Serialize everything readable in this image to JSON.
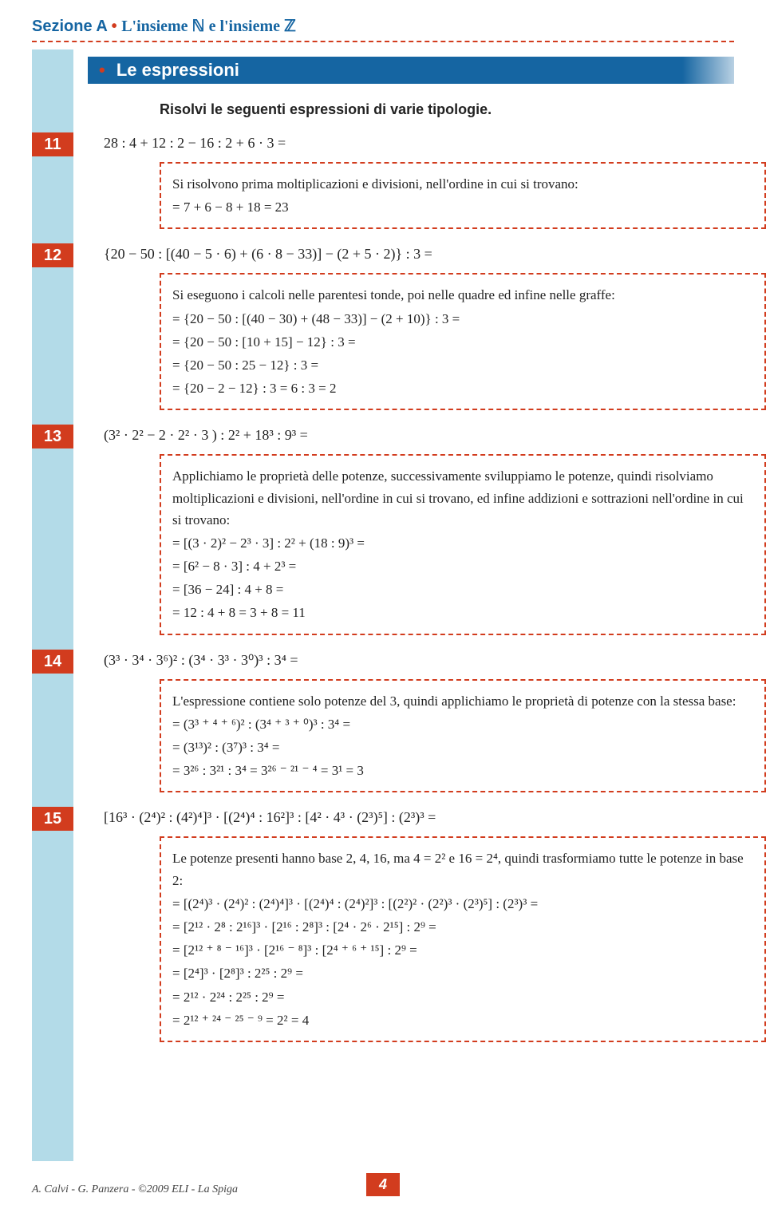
{
  "colors": {
    "brand_blue": "#1565a2",
    "brand_orange": "#d23c1e",
    "light_blue": "#b3dbe8",
    "text": "#222222",
    "bg": "#ffffff"
  },
  "typography": {
    "header_fontsize": 20,
    "band_fontsize": 22,
    "intro_fontsize": 18,
    "body_fontsize": 18,
    "solution_fontsize": 17
  },
  "header": {
    "section_label": "Sezione A",
    "section_title": "L'insieme ℕ e l'insieme ℤ"
  },
  "band": {
    "title": "Le espressioni"
  },
  "intro": "Risolvi le seguenti espressioni di varie tipologie.",
  "exercises": [
    {
      "num": "11",
      "expr_html": "28 : 4 + 12 : 2 − 16 : 2 + 6 · 3 =",
      "solution": {
        "para": "Si risolvono prima moltiplicazioni e divisioni, nell'ordine in cui si trovano:",
        "lines": [
          "= 7 + 6 − 8 + 18 = 23"
        ]
      }
    },
    {
      "num": "12",
      "expr_html": "{20 − 50 : [(40 − 5 · 6) + (6 · 8 − 33)] − (2 + 5 · 2)} : 3 =",
      "solution": {
        "para": "Si eseguono i calcoli nelle parentesi tonde, poi nelle quadre ed infine nelle graffe:",
        "lines": [
          "= {20 − 50 : [(40 − 30) + (48 − 33)] − (2 + 10)} : 3 =",
          "= {20 − 50 : [10 + 15] − 12} : 3 =",
          "= {20 − 50 : 25 − 12} : 3 =",
          "= {20 − 2 − 12} : 3 = 6 : 3 = 2"
        ]
      }
    },
    {
      "num": "13",
      "expr_html": "(3² · 2² − 2 · 2² · 3 ) : 2² + 18³ : 9³ =",
      "solution": {
        "para": "Applichiamo le proprietà delle potenze, successivamente sviluppiamo le potenze, quindi risolviamo moltiplicazioni e divisioni, nell'ordine in cui si trovano, ed infine addizioni e sottrazioni nell'ordine in cui si trovano:",
        "lines": [
          "= [(3 · 2)² − 2³ · 3] : 2²  + (18 : 9)³ =",
          "= [6² − 8 · 3] : 4  + 2³ =",
          "= [36 − 24] : 4 + 8 =",
          "= 12 : 4 + 8 = 3 + 8 = 11"
        ]
      }
    },
    {
      "num": "14",
      "expr_html": "(3³ · 3⁴ · 3⁶)² : (3⁴ · 3³ · 3⁰)³ : 3⁴ =",
      "solution": {
        "para": "L'espressione contiene solo potenze del 3, quindi applichiamo le proprietà di potenze con la stessa base:",
        "lines": [
          "= (3³ ⁺ ⁴ ⁺ ⁶)² : (3⁴ ⁺ ³ ⁺ ⁰)³ : 3⁴ =",
          "= (3¹³)² : (3⁷)³ : 3⁴ =",
          "= 3²⁶ : 3²¹ : 3⁴ = 3²⁶ ⁻ ²¹ ⁻ ⁴ = 3¹ = 3"
        ]
      }
    },
    {
      "num": "15",
      "expr_html": "[16³ · (2⁴)² : (4²)⁴]³ · [(2⁴)⁴ : 16²]³ : [4² · 4³ · (2³)⁵] : (2³)³ =",
      "solution": {
        "para": "Le potenze presenti hanno base 2, 4, 16, ma 4 = 2² e 16 = 2⁴, quindi trasformiamo tutte le potenze in base 2:",
        "lines": [
          "= [(2⁴)³ · (2⁴)² : (2⁴)⁴]³ · [(2⁴)⁴ : (2⁴)²]³ : [(2²)² · (2²)³ · (2³)⁵] : (2³)³ =",
          "= [2¹² · 2⁸ : 2¹⁶]³ · [2¹⁶ : 2⁸]³ : [2⁴ · 2⁶ · 2¹⁵] : 2⁹ =",
          "= [2¹² ⁺ ⁸ ⁻ ¹⁶]³ · [2¹⁶ ⁻ ⁸]³ : [2⁴ ⁺ ⁶ ⁺ ¹⁵] : 2⁹ =",
          "= [2⁴]³ · [2⁸]³ : 2²⁵ : 2⁹ =",
          "= 2¹² · 2²⁴ : 2²⁵ : 2⁹ =",
          "= 2¹² ⁺ ²⁴ ⁻ ²⁵ ⁻ ⁹ = 2² = 4"
        ]
      }
    }
  ],
  "footer": {
    "credit": "A. Calvi - G. Panzera - ©2009 ELI - La Spiga",
    "page": "4"
  }
}
